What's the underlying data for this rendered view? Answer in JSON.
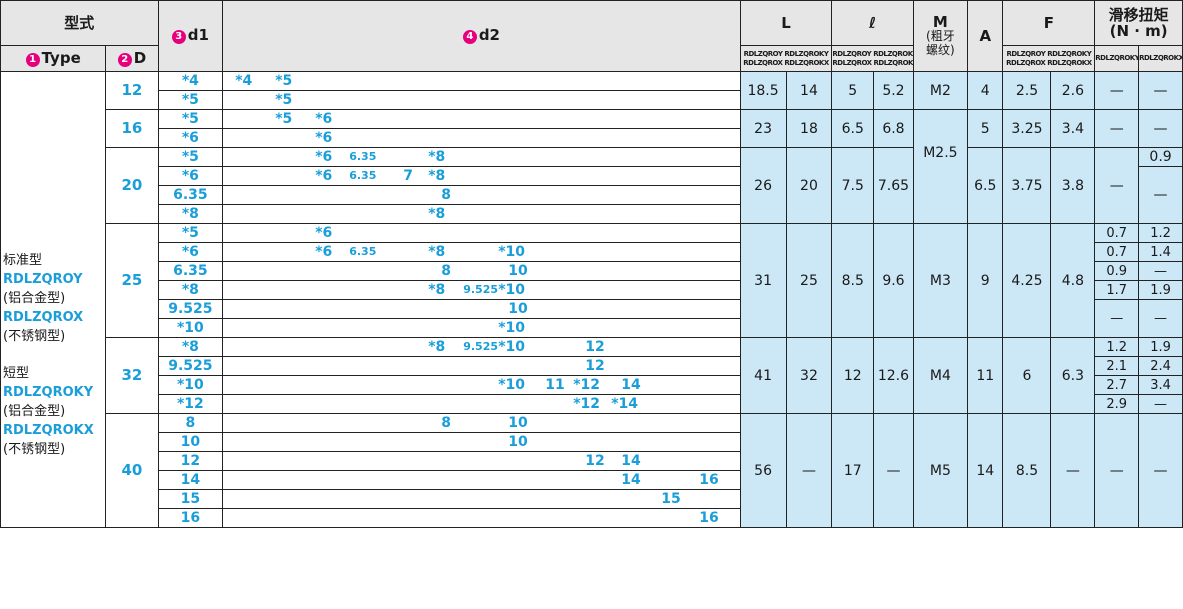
{
  "header": {
    "type_group": "型式",
    "type_label": "Type",
    "type_num": "1",
    "D_label": "D",
    "D_num": "2",
    "d1_label": "d1",
    "d1_num": "3",
    "d2_label": "d2",
    "d2_num": "4",
    "L": "L",
    "l": "ℓ",
    "M": "M",
    "M_sub1": "(粗牙",
    "M_sub2": "螺纹)",
    "A": "A",
    "F": "F",
    "torque": "滑移扭矩",
    "torque_unit": "(N · m)",
    "sub_L1": "RDLZQROY RDLZQROKY",
    "sub_L2": "RDLZQROX RDLZQROKX",
    "sub_l1": "RDLZQROY RDLZQROKY",
    "sub_l2": "RDLZQROX RDLZQROKX",
    "sub_F1": "RDLZQROY RDLZQROKY",
    "sub_F2": "RDLZQROX RDLZQROKX",
    "sub_T1": "RDLZQROKY",
    "sub_T2": "RDLZQROKX"
  },
  "types": {
    "std": "标准型",
    "std_y": "RDLZQROY",
    "std_y_mat": "(铝合金型)",
    "std_x": "RDLZQROX",
    "std_x_mat": "(不锈钢型)",
    "short": "短型",
    "short_y": "RDLZQROKY",
    "short_y_mat": "(铝合金型)",
    "short_x": "RDLZQROKX",
    "short_x_mat": "(不锈钢型)"
  },
  "groups": {
    "g12": {
      "D": "12",
      "L1": "18.5",
      "L2": "14",
      "l1": "5",
      "l2": "5.2",
      "M": "M2",
      "A": "4",
      "F1": "2.5",
      "F2": "2.6",
      "T1": "—",
      "T2": "—"
    },
    "g16": {
      "D": "16",
      "L1": "23",
      "L2": "18",
      "l1": "6.5",
      "l2": "6.8",
      "A": "5",
      "F1": "3.25",
      "F2": "3.4",
      "T1": "—",
      "T2": "—"
    },
    "g20": {
      "D": "20",
      "L1": "26",
      "L2": "20",
      "l1": "7.5",
      "l2": "7.65",
      "M": "M2.5",
      "A": "6.5",
      "F1": "3.75",
      "F2": "3.8",
      "T1": "—",
      "T2a": "0.9",
      "T2b": "—"
    },
    "g25": {
      "D": "25",
      "L1": "31",
      "L2": "25",
      "l1": "8.5",
      "l2": "9.6",
      "M": "M3",
      "A": "9",
      "F1": "4.25",
      "F2": "4.8",
      "t": [
        [
          "0.7",
          "1.2"
        ],
        [
          "0.7",
          "1.4"
        ],
        [
          "0.9",
          "—"
        ],
        [
          "1.7",
          "1.9"
        ],
        [
          "—",
          "—"
        ]
      ]
    },
    "g32": {
      "D": "32",
      "L1": "41",
      "L2": "32",
      "l1": "12",
      "l2": "12.6",
      "M": "M4",
      "A": "11",
      "F1": "6",
      "F2": "6.3",
      "t": [
        [
          "1.2",
          "1.9"
        ],
        [
          "2.1",
          "2.4"
        ],
        [
          "2.7",
          "3.4"
        ],
        [
          "2.9",
          "—"
        ]
      ]
    },
    "g40": {
      "D": "40",
      "L1": "56",
      "L2": "—",
      "l1": "17",
      "l2": "—",
      "M": "M5",
      "A": "14",
      "F1": "8.5",
      "F2": "—",
      "T1": "—",
      "T2": "—"
    }
  },
  "d1": [
    "*4",
    "*5",
    "*5",
    "*6",
    "*5",
    "*6",
    "6.35",
    "*8",
    "*5",
    "*6",
    "6.35",
    "*8",
    "9.525",
    "*10",
    "*8",
    "9.525",
    "*10",
    "*12",
    "8",
    "10",
    "12",
    "14",
    "15",
    "16"
  ],
  "d2": [
    [
      "*4",
      "*5"
    ],
    [
      "*5"
    ],
    [
      "*5",
      "*6"
    ],
    [
      "*6"
    ],
    [
      "*6",
      "6.35",
      "*8"
    ],
    [
      "*6",
      "6.35",
      "7",
      "*8"
    ],
    [
      "8"
    ],
    [
      "*8"
    ],
    [
      "*6"
    ],
    [
      "*6",
      "6.35",
      "*8",
      "*10"
    ],
    [
      "8",
      "10"
    ],
    [
      "*8",
      "9.525",
      "*10"
    ],
    [
      "10"
    ],
    [
      "*10"
    ],
    [
      "*8",
      "9.525",
      "*10",
      "12"
    ],
    [
      "12"
    ],
    [
      "*10",
      "11",
      "*12",
      "14"
    ],
    [
      "*12",
      "*14"
    ],
    [
      "8",
      "10"
    ],
    [
      "10"
    ],
    [
      "12",
      "14"
    ],
    [
      "14",
      "16"
    ],
    [
      "15"
    ],
    [
      "16"
    ]
  ]
}
